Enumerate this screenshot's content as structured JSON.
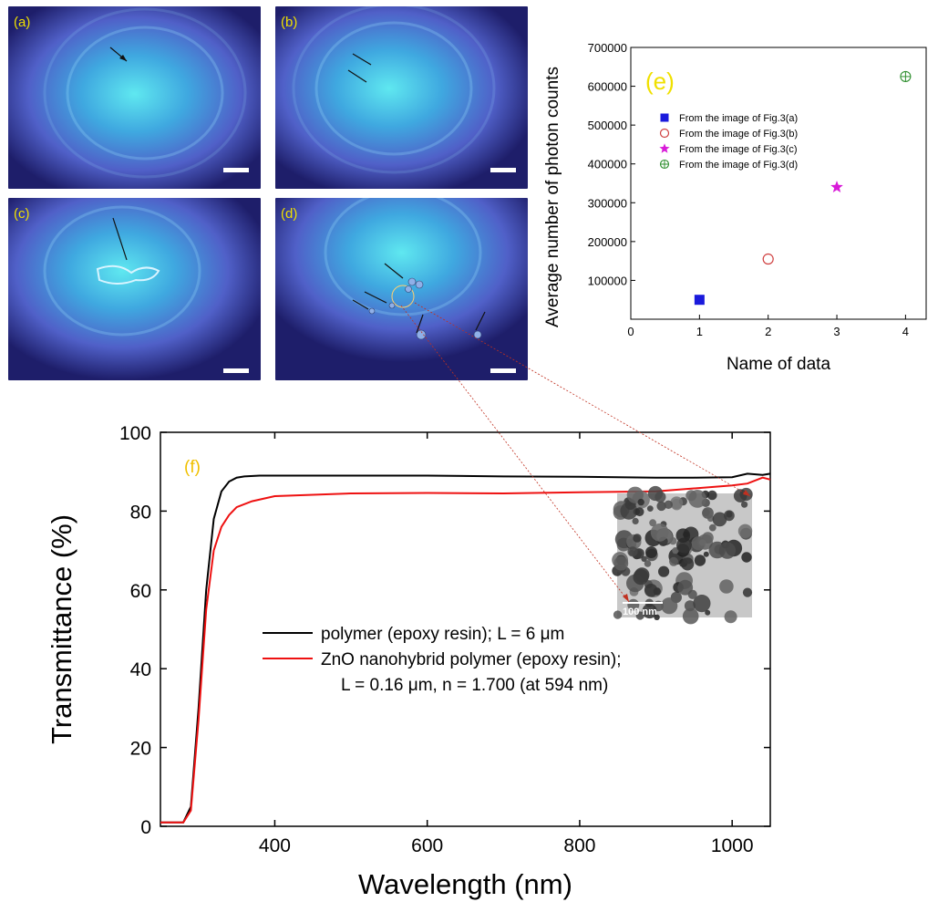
{
  "micrographs": [
    {
      "label": "(a)"
    },
    {
      "label": "(b)"
    },
    {
      "label": "(c)"
    },
    {
      "label": "(d)"
    }
  ],
  "tem_inset": {
    "scale_label": "100 nm"
  },
  "chart_data": [
    {
      "type": "scatter",
      "panel_label": "(e)",
      "xlabel": "Name of data",
      "ylabel": "Average number of photon counts",
      "xlim": [
        0,
        4.3
      ],
      "ylim": [
        0,
        700000
      ],
      "xticks": [
        0,
        1,
        2,
        3,
        4
      ],
      "yticks": [
        100000,
        200000,
        300000,
        400000,
        500000,
        600000,
        700000
      ],
      "grid": false,
      "legend_position": "left",
      "series": [
        {
          "name": "From the image of Fig.3(a)",
          "marker": "filled-square",
          "color": "#1a1adc",
          "x": [
            1
          ],
          "y": [
            50000
          ]
        },
        {
          "name": "From the image of Fig.3(b)",
          "marker": "open-circle",
          "color": "#d04040",
          "x": [
            2
          ],
          "y": [
            155000
          ]
        },
        {
          "name": "From the image of Fig.3(c)",
          "marker": "star",
          "color": "#d81ad8",
          "x": [
            3
          ],
          "y": [
            340000
          ]
        },
        {
          "name": "From the image of Fig.3(d)",
          "marker": "crossed-circle",
          "color": "#2f8f2f",
          "x": [
            4
          ],
          "y": [
            625000
          ]
        }
      ]
    },
    {
      "type": "line",
      "panel_label": "(f)",
      "xlabel": "Wavelength (nm)",
      "ylabel": "Transmittance (%)",
      "xlim": [
        250,
        1050
      ],
      "ylim": [
        0,
        100
      ],
      "xticks": [
        400,
        600,
        800,
        1000
      ],
      "yticks": [
        0,
        20,
        40,
        60,
        80,
        100
      ],
      "grid": false,
      "legend_position": "center-left",
      "series": [
        {
          "name": "polymer (epoxy resin); L = 6 μm",
          "color": "#000000",
          "x": [
            250,
            280,
            290,
            300,
            310,
            320,
            330,
            340,
            350,
            360,
            380,
            400,
            500,
            600,
            700,
            800,
            900,
            950,
            1000,
            1020,
            1040,
            1050
          ],
          "y": [
            1,
            1,
            5,
            30,
            60,
            78,
            85,
            87.5,
            88.5,
            88.8,
            89,
            89,
            89,
            89,
            88.8,
            88.7,
            88.5,
            88.5,
            88.6,
            89.5,
            89.2,
            89.5
          ]
        },
        {
          "name": "ZnO nanohybrid polymer (epoxy resin); L = 0.16 μm, n = 1.700 (at 594 nm)",
          "color": "#ee1111",
          "x": [
            250,
            280,
            290,
            300,
            310,
            320,
            330,
            340,
            350,
            370,
            400,
            500,
            600,
            700,
            800,
            900,
            1000,
            1020,
            1040,
            1050
          ],
          "y": [
            1,
            1,
            4,
            27,
            55,
            70,
            76,
            79,
            81,
            82.5,
            83.8,
            84.5,
            84.6,
            84.5,
            84.8,
            85,
            86.5,
            87,
            88.5,
            88
          ]
        }
      ]
    }
  ]
}
